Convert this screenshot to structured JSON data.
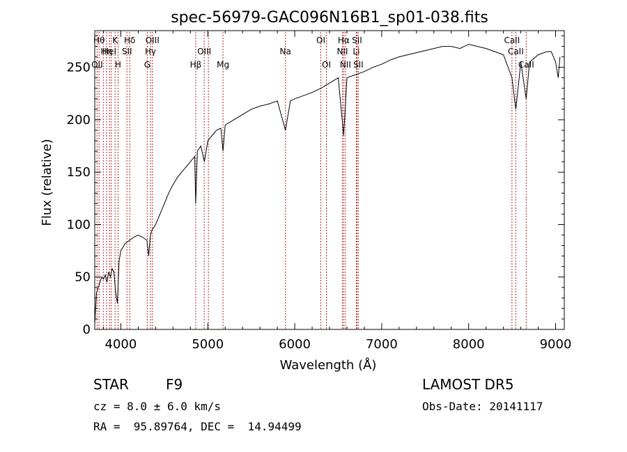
{
  "chart_data": {
    "type": "line",
    "title": "spec-56979-GAC096N16B1_sp01-038.fits",
    "xlabel": "Wavelength (Å)",
    "ylabel": "Flux (relative)",
    "xlim": [
      3700,
      9100
    ],
    "ylim": [
      0,
      285
    ],
    "x_ticks": [
      4000,
      5000,
      6000,
      7000,
      8000,
      9000
    ],
    "y_ticks": [
      0,
      50,
      100,
      150,
      200,
      250
    ],
    "grid": false,
    "line_color": "#000000",
    "marker_color": "#b22222",
    "series": [
      {
        "x": [
          3700,
          3720,
          3740,
          3760,
          3780,
          3800,
          3820,
          3840,
          3860,
          3880,
          3900,
          3920,
          3940,
          3960,
          3970,
          3980,
          4000,
          4050,
          4100,
          4150,
          4200,
          4250,
          4300,
          4320,
          4340,
          4360,
          4400,
          4450,
          4500,
          4550,
          4600,
          4650,
          4700,
          4750,
          4800,
          4850,
          4861,
          4880,
          4920,
          4960,
          5000,
          5050,
          5100,
          5150,
          5175,
          5200,
          5300,
          5400,
          5500,
          5600,
          5700,
          5800,
          5893,
          5950,
          6000,
          6100,
          6200,
          6300,
          6400,
          6500,
          6563,
          6600,
          6700,
          6800,
          6900,
          7000,
          7100,
          7200,
          7300,
          7400,
          7500,
          7600,
          7700,
          7800,
          7900,
          8000,
          8100,
          8200,
          8300,
          8400,
          8498,
          8542,
          8600,
          8662,
          8700,
          8800,
          8900,
          8950,
          9000,
          9030,
          9050
        ],
        "y": [
          5,
          35,
          40,
          45,
          50,
          48,
          52,
          45,
          55,
          50,
          58,
          55,
          35,
          25,
          45,
          65,
          75,
          82,
          85,
          88,
          90,
          88,
          85,
          70,
          90,
          95,
          100,
          110,
          120,
          130,
          138,
          145,
          150,
          155,
          160,
          165,
          120,
          170,
          175,
          160,
          180,
          185,
          190,
          192,
          170,
          195,
          200,
          205,
          210,
          213,
          215,
          218,
          190,
          218,
          220,
          223,
          226,
          230,
          235,
          240,
          185,
          240,
          243,
          246,
          250,
          253,
          257,
          260,
          262,
          264,
          266,
          268,
          270,
          270,
          268,
          272,
          270,
          268,
          265,
          262,
          240,
          210,
          255,
          220,
          255,
          262,
          265,
          265,
          255,
          240,
          260
        ]
      }
    ],
    "lines": [
      {
        "x": 3727,
        "row": 3,
        "label": "OII"
      },
      {
        "x": 3750,
        "row": 1,
        "label": "Hθ"
      },
      {
        "x": 3798,
        "row": 1,
        "label": ""
      },
      {
        "x": 3835,
        "row": 2,
        "label": "Hη"
      },
      {
        "x": 3869,
        "row": 2,
        "label": "HeI"
      },
      {
        "x": 3889,
        "row": 3,
        "label": ""
      },
      {
        "x": 3934,
        "row": 1,
        "label": "K"
      },
      {
        "x": 3968,
        "row": 3,
        "label": "H"
      },
      {
        "x": 4070,
        "row": 2,
        "label": "SII"
      },
      {
        "x": 4102,
        "row": 1,
        "label": "Hδ"
      },
      {
        "x": 4304,
        "row": 3,
        "label": "G"
      },
      {
        "x": 4341,
        "row": 2,
        "label": "Hγ"
      },
      {
        "x": 4363,
        "row": 1,
        "label": "OIII"
      },
      {
        "x": 4861,
        "row": 3,
        "label": "Hβ"
      },
      {
        "x": 4959,
        "row": 2,
        "label": "OIII"
      },
      {
        "x": 5007,
        "row": 1,
        "label": ""
      },
      {
        "x": 5175,
        "row": 3,
        "label": "Mg"
      },
      {
        "x": 5893,
        "row": 2,
        "label": "Na"
      },
      {
        "x": 6300,
        "row": 1,
        "label": "OI"
      },
      {
        "x": 6364,
        "row": 3,
        "label": "OI"
      },
      {
        "x": 6548,
        "row": 2,
        "label": "NII"
      },
      {
        "x": 6563,
        "row": 1,
        "label": "Hα"
      },
      {
        "x": 6583,
        "row": 3,
        "label": "NII"
      },
      {
        "x": 6708,
        "row": 2,
        "label": "Li"
      },
      {
        "x": 6716,
        "row": 1,
        "label": "SII"
      },
      {
        "x": 6731,
        "row": 3,
        "label": "SII"
      },
      {
        "x": 8498,
        "row": 1,
        "label": "CaII"
      },
      {
        "x": 8542,
        "row": 2,
        "label": "CaII"
      },
      {
        "x": 8662,
        "row": 3,
        "label": "CaII"
      }
    ]
  },
  "info": {
    "class": "STAR",
    "subclass": "F9",
    "cz": "cz = 8.0 ± 6.0 km/s",
    "coords": "RA =  95.89764, DEC =  14.94499",
    "survey": "LAMOST DR5",
    "obs_date": "Obs-Date: 20141117"
  }
}
